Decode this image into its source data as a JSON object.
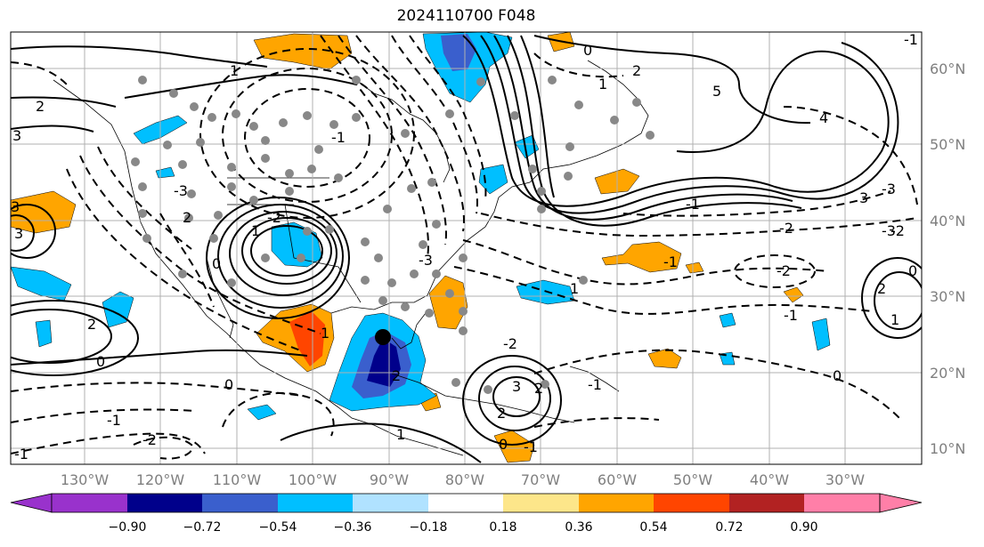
{
  "title": "2024110700 F048",
  "map": {
    "lat_labels": [
      "60°N",
      "50°N",
      "40°N",
      "30°N",
      "20°N",
      "10°N"
    ],
    "lon_labels": [
      "130°W",
      "120°W",
      "110°W",
      "100°W",
      "90°W",
      "80°W",
      "70°W",
      "60°W",
      "50°W",
      "40°W",
      "30°W"
    ],
    "contour_labels": [
      "-1",
      "0",
      "2",
      "3",
      "-2",
      "-3",
      "2",
      "0",
      "-1",
      "-2",
      "-1",
      "0",
      "1",
      "2",
      "-3",
      "-2",
      "3",
      "2",
      "1",
      "-1",
      "0",
      "-1",
      "-2",
      "-3",
      "5",
      "4",
      "3",
      "2",
      "1",
      "0",
      "-1",
      "-2",
      "-3",
      "-2",
      "-1",
      "1",
      "0",
      "-1",
      "2",
      "1",
      "1",
      "0",
      "-1",
      "3",
      "2",
      "1",
      "3",
      "2"
    ]
  },
  "colorbar": {
    "ticks": [
      "−0.90",
      "−0.72",
      "−0.54",
      "−0.36",
      "−0.18",
      "0.18",
      "0.36",
      "0.54",
      "0.72",
      "0.90"
    ],
    "colors": [
      "#9932cc",
      "#00008b",
      "#3a5fcd",
      "#00bfff",
      "#b0e2ff",
      "#ffffff",
      "#fde68a",
      "#ffa500",
      "#ff4500",
      "#b22222",
      "#ff7fa8"
    ]
  }
}
